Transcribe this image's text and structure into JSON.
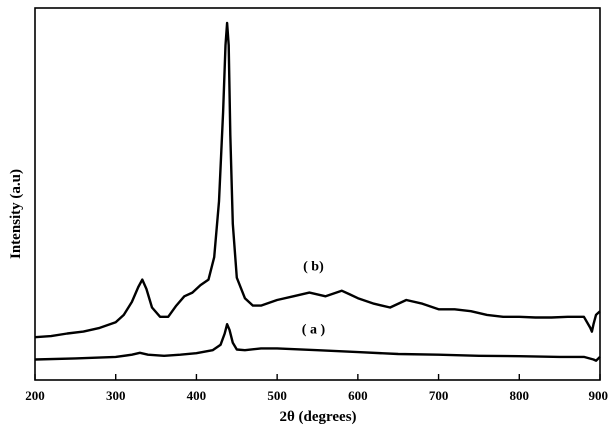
{
  "chart_data": {
    "type": "line",
    "xlabel": "2θ (degrees)",
    "ylabel": "Intensity (a.u)",
    "xlim": [
      200,
      900
    ],
    "ylim": [
      0,
      1
    ],
    "x_ticks": [
      "200",
      "300",
      "400",
      "500",
      "600",
      "700",
      "800",
      "900"
    ],
    "y_ticks_labeled": false,
    "grid": false,
    "annotations": [
      {
        "text": "( b)",
        "x": 545,
        "y": 0.295
      },
      {
        "text": "( a )",
        "x": 545,
        "y": 0.125
      }
    ],
    "series": [
      {
        "label": "( b)",
        "x": [
          200,
          220,
          240,
          260,
          280,
          300,
          310,
          320,
          328,
          333,
          338,
          345,
          355,
          365,
          375,
          385,
          395,
          405,
          415,
          422,
          428,
          433,
          436,
          438,
          440,
          442,
          445,
          450,
          460,
          470,
          480,
          500,
          520,
          540,
          560,
          580,
          590,
          600,
          620,
          640,
          660,
          680,
          700,
          720,
          740,
          760,
          780,
          800,
          820,
          840,
          860,
          880,
          888,
          890,
          892,
          895,
          900
        ],
        "y": [
          0.115,
          0.118,
          0.125,
          0.13,
          0.14,
          0.155,
          0.175,
          0.21,
          0.25,
          0.27,
          0.245,
          0.195,
          0.17,
          0.17,
          0.2,
          0.225,
          0.235,
          0.255,
          0.27,
          0.33,
          0.48,
          0.72,
          0.9,
          0.96,
          0.9,
          0.66,
          0.42,
          0.275,
          0.22,
          0.2,
          0.2,
          0.215,
          0.225,
          0.235,
          0.225,
          0.24,
          0.23,
          0.22,
          0.205,
          0.195,
          0.215,
          0.205,
          0.19,
          0.19,
          0.185,
          0.175,
          0.17,
          0.17,
          0.168,
          0.168,
          0.17,
          0.17,
          0.14,
          0.13,
          0.15,
          0.175,
          0.185
        ]
      },
      {
        "label": "( a )",
        "x": [
          200,
          250,
          300,
          320,
          330,
          340,
          360,
          380,
          400,
          420,
          430,
          435,
          438,
          441,
          445,
          450,
          460,
          480,
          500,
          550,
          600,
          650,
          700,
          750,
          800,
          850,
          880,
          892,
          895,
          900
        ],
        "y": [
          0.055,
          0.058,
          0.062,
          0.068,
          0.073,
          0.068,
          0.065,
          0.068,
          0.072,
          0.08,
          0.095,
          0.125,
          0.15,
          0.135,
          0.1,
          0.082,
          0.08,
          0.085,
          0.085,
          0.08,
          0.075,
          0.07,
          0.068,
          0.065,
          0.064,
          0.062,
          0.062,
          0.055,
          0.052,
          0.062
        ]
      }
    ]
  }
}
